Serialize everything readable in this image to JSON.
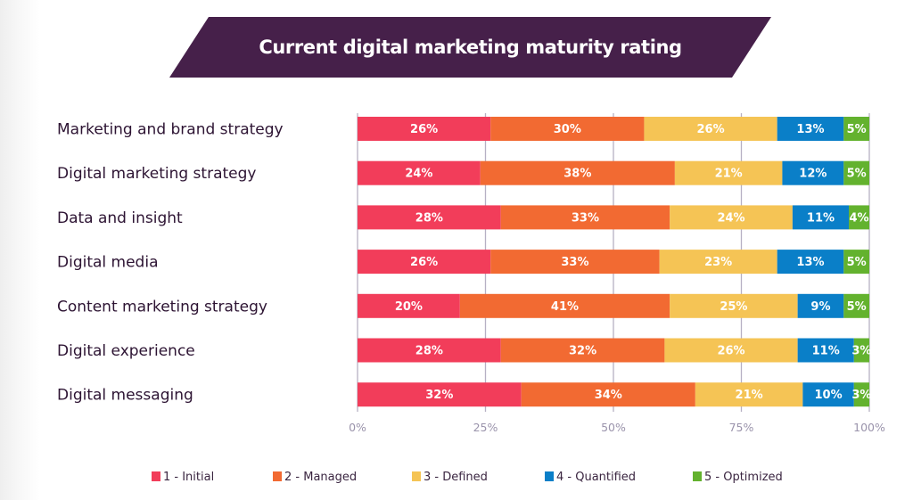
{
  "chart_data": {
    "type": "bar",
    "orientation": "horizontal",
    "stacked": true,
    "title": "Current digital marketing maturity rating",
    "xlabel": "",
    "ylabel": "",
    "xlim": [
      0,
      100
    ],
    "x_ticks": [
      0,
      25,
      50,
      75,
      100
    ],
    "x_tick_labels": [
      "0%",
      "25%",
      "50%",
      "75%",
      "100%"
    ],
    "grid": true,
    "legend_position": "bottom",
    "categories": [
      "Marketing and brand strategy",
      "Digital marketing strategy",
      "Data and insight",
      "Digital media",
      "Content marketing strategy",
      "Digital experience",
      "Digital messaging"
    ],
    "series": [
      {
        "name": "1 - Initial",
        "color": "#f23d5a",
        "values": [
          26,
          24,
          28,
          26,
          20,
          28,
          32
        ]
      },
      {
        "name": "2 - Managed",
        "color": "#f26a32",
        "values": [
          30,
          38,
          33,
          33,
          41,
          32,
          34
        ]
      },
      {
        "name": "3 - Defined",
        "color": "#f5c455",
        "values": [
          26,
          21,
          24,
          23,
          25,
          26,
          21
        ]
      },
      {
        "name": "4 - Quantified",
        "color": "#0a7fc8",
        "values": [
          13,
          12,
          11,
          13,
          9,
          11,
          10
        ]
      },
      {
        "name": "5 - Optimized",
        "color": "#63b22e",
        "values": [
          5,
          5,
          4,
          5,
          5,
          3,
          3
        ]
      }
    ],
    "value_label_suffix": "%"
  },
  "banner_color": "#46204a"
}
